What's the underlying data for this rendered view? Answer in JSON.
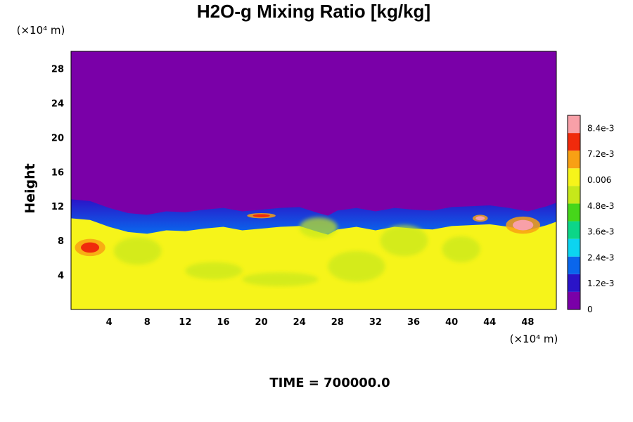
{
  "chart_data": {
    "type": "heatmap",
    "title": "H2O-g Mixing Ratio [kg/kg]",
    "ylabel": "Height",
    "y_unit": "(×10⁴ m)",
    "x_unit": "(×10⁴ m)",
    "xlim": [
      0,
      51
    ],
    "ylim": [
      0,
      30
    ],
    "x_ticks": [
      4,
      8,
      12,
      16,
      20,
      24,
      28,
      32,
      36,
      40,
      44,
      48
    ],
    "y_ticks": [
      4,
      8,
      12,
      16,
      20,
      24,
      28
    ],
    "time_label": "TIME = 700000.0",
    "colorbar": {
      "min": 0,
      "max": 0.009,
      "tick_values": [
        0,
        0.0012,
        0.0024,
        0.0036,
        0.0048,
        0.006,
        0.0072,
        0.0084
      ],
      "tick_labels": [
        "0",
        "1.2e-3",
        "2.4e-3",
        "3.6e-3",
        "4.8e-3",
        "0.006",
        "7.2e-3",
        "8.4e-3"
      ],
      "colors": [
        "#7a00a8",
        "#2a14c8",
        "#0a66ec",
        "#0cd4f0",
        "#0cd688",
        "#46d61a",
        "#c6e81a",
        "#f6f41a",
        "#f8a014",
        "#f02a0c",
        "#f8a0a8"
      ]
    },
    "field": {
      "upper_layer_value": 0,
      "lower_layer_value": 0.0062,
      "near_surface_value": 0.0065,
      "moisture_top_height": [
        [
          0,
          12.8
        ],
        [
          2,
          12.6
        ],
        [
          4,
          11.8
        ],
        [
          6,
          11.2
        ],
        [
          8,
          11.0
        ],
        [
          10,
          11.4
        ],
        [
          12,
          11.3
        ],
        [
          14,
          11.6
        ],
        [
          16,
          11.8
        ],
        [
          18,
          11.4
        ],
        [
          20,
          11.6
        ],
        [
          22,
          11.8
        ],
        [
          24,
          11.9
        ],
        [
          26,
          11.2
        ],
        [
          27,
          10.9
        ],
        [
          28,
          11.5
        ],
        [
          30,
          11.8
        ],
        [
          32,
          11.4
        ],
        [
          34,
          11.8
        ],
        [
          36,
          11.6
        ],
        [
          38,
          11.5
        ],
        [
          40,
          11.9
        ],
        [
          42,
          12.0
        ],
        [
          44,
          12.1
        ],
        [
          46,
          11.8
        ],
        [
          48,
          11.4
        ],
        [
          50,
          12.0
        ],
        [
          51,
          12.4
        ]
      ],
      "moist_patches": [
        {
          "x": 2.0,
          "y": 7.2,
          "rx": 1.6,
          "ry": 1.0,
          "value": 0.0078
        },
        {
          "x": 43.0,
          "y": 10.6,
          "rx": 0.8,
          "ry": 0.4,
          "value": 0.0082
        },
        {
          "x": 47.5,
          "y": 9.8,
          "rx": 1.8,
          "ry": 1.0,
          "value": 0.0086
        },
        {
          "x": 20.0,
          "y": 10.9,
          "rx": 1.5,
          "ry": 0.3,
          "value": 0.0075
        }
      ],
      "dry_patches": [
        {
          "x": 7.0,
          "y": 6.8,
          "rx": 2.5,
          "ry": 1.6,
          "value": 0.0052
        },
        {
          "x": 15.0,
          "y": 4.5,
          "rx": 3.0,
          "ry": 1.0,
          "value": 0.0054
        },
        {
          "x": 22.0,
          "y": 3.5,
          "rx": 4.0,
          "ry": 0.8,
          "value": 0.0054
        },
        {
          "x": 30.0,
          "y": 5.0,
          "rx": 3.0,
          "ry": 1.8,
          "value": 0.005
        },
        {
          "x": 35.0,
          "y": 8.0,
          "rx": 2.5,
          "ry": 1.8,
          "value": 0.0052
        },
        {
          "x": 26.0,
          "y": 9.5,
          "rx": 2.0,
          "ry": 1.2,
          "value": 0.0052
        },
        {
          "x": 41.0,
          "y": 7.0,
          "rx": 2.0,
          "ry": 1.5,
          "value": 0.0054
        }
      ]
    }
  }
}
